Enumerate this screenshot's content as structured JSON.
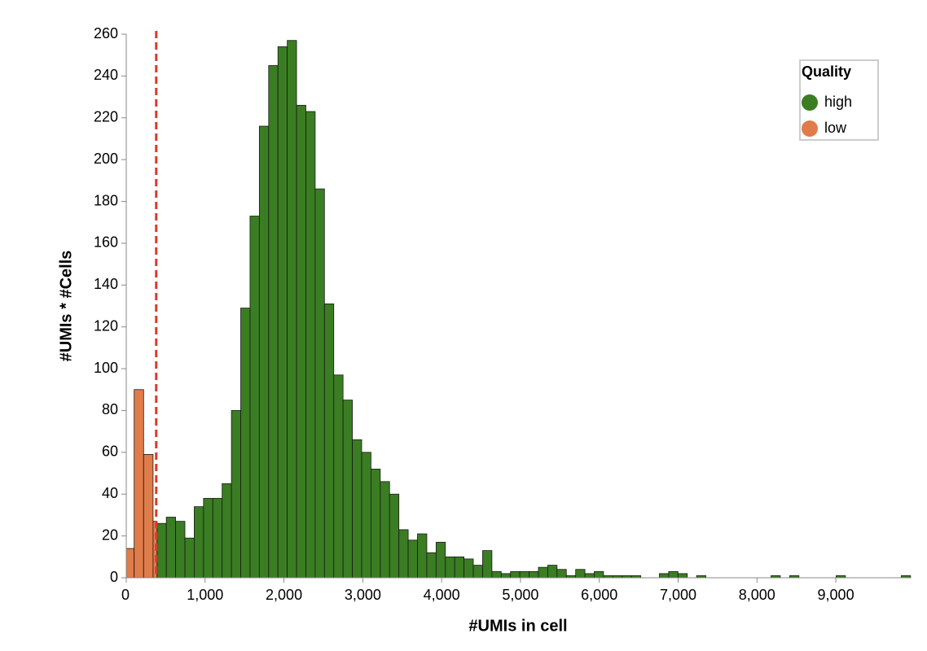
{
  "chart_data": {
    "type": "histogram",
    "xlabel": "#UMIs in cell",
    "ylabel": "#UMIs * #Cells",
    "legend_title": "Quality",
    "legend": "top-right",
    "series": [
      {
        "name": "high",
        "color": "#3a7d22",
        "bins": [
          390,
          508,
          626,
          744,
          862,
          980,
          1098,
          1216,
          1334,
          1452,
          1570,
          1688,
          1806,
          1924,
          2042,
          2160,
          2278,
          2396,
          2514,
          2632,
          2750,
          2868,
          2986,
          3104,
          3222,
          3340,
          3458,
          3576,
          3694,
          3812,
          3930,
          4048,
          4166,
          4284,
          4402,
          4520,
          4638,
          4756,
          4874,
          4992,
          5110,
          5228,
          5346,
          5464,
          5582,
          5700,
          5818,
          5936,
          6054,
          6172,
          6290,
          6408,
          6526,
          6644,
          6762,
          6880,
          6998,
          7116,
          7234,
          7352,
          7470,
          7588,
          7706,
          7824,
          7942,
          8060,
          8178,
          8296,
          8414,
          8532,
          8650,
          8768,
          8886,
          9004,
          9122,
          9240,
          9358,
          9476,
          9594,
          9712,
          9830,
          9948
        ],
        "values": [
          26,
          29,
          27,
          19,
          34,
          38,
          38,
          45,
          80,
          129,
          173,
          216,
          245,
          254,
          257,
          226,
          223,
          186,
          131,
          97,
          85,
          66,
          60,
          52,
          46,
          40,
          23,
          18,
          21,
          12,
          17,
          10,
          10,
          9,
          6,
          13,
          3,
          2,
          3,
          3,
          3,
          5,
          6,
          4,
          1,
          4,
          2,
          3,
          1,
          1,
          1,
          1,
          0,
          0,
          2,
          3,
          2,
          0,
          1,
          0,
          0,
          0,
          0,
          0,
          0,
          0,
          1,
          0,
          1,
          0,
          0,
          0,
          0,
          1,
          0,
          0,
          0,
          0,
          0,
          0,
          1
        ]
      },
      {
        "name": "low",
        "color": "#e07b4a",
        "bins": [
          0,
          100,
          220,
          340,
          390
        ],
        "values": [
          14,
          90,
          59,
          27
        ]
      }
    ],
    "threshold": {
      "value": 380,
      "color": "#d93a2b"
    },
    "xlim": [
      0,
      9950
    ],
    "xticks": [
      0,
      {
        "value": 1000,
        "label": "1,000"
      },
      {
        "value": 2000,
        "label": "2,000"
      },
      {
        "value": 3000,
        "label": "3,000"
      },
      {
        "value": 4000,
        "label": "4,000"
      },
      {
        "value": 5000,
        "label": "5,000"
      },
      {
        "value": 6000,
        "label": "6,000"
      },
      {
        "value": 7000,
        "label": "7,000"
      },
      {
        "value": 8000,
        "label": "8,000"
      },
      {
        "value": 9000,
        "label": "9,000"
      }
    ],
    "ylim": [
      0,
      260
    ],
    "yticks": [
      0,
      20,
      40,
      60,
      80,
      100,
      120,
      140,
      160,
      180,
      200,
      220,
      240,
      260
    ],
    "grid": false
  }
}
